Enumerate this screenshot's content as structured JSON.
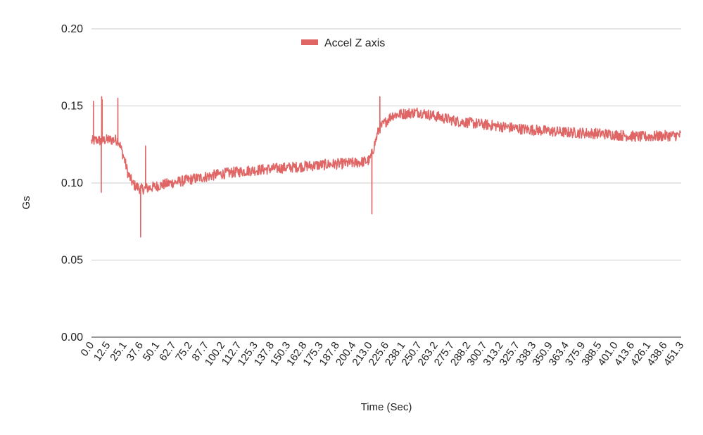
{
  "chart_data": {
    "type": "line",
    "title": "",
    "xlabel": "Time (Sec)",
    "ylabel": "Gs",
    "ylim": [
      0,
      0.2
    ],
    "xlim": [
      0,
      451.3
    ],
    "y_ticks": [
      "0.00",
      "0.05",
      "0.10",
      "0.15",
      "0.20"
    ],
    "y_tick_values": [
      0,
      0.05,
      0.1,
      0.15,
      0.2
    ],
    "x_ticks": [
      "0.0",
      "12.5",
      "25.1",
      "37.6",
      "50.1",
      "62.7",
      "75.2",
      "87.7",
      "100.2",
      "112.7",
      "125.3",
      "137.8",
      "150.3",
      "162.8",
      "175.3",
      "187.8",
      "200.4",
      "213.0",
      "225.6",
      "238.1",
      "250.7",
      "263.2",
      "275.7",
      "288.2",
      "300.7",
      "313.2",
      "325.7",
      "338.3",
      "350.9",
      "363.4",
      "375.9",
      "388.5",
      "401.0",
      "413.6",
      "426.1",
      "438.6",
      "451.3"
    ],
    "legend": {
      "position": "top",
      "entries": [
        "Accel Z axis"
      ]
    },
    "grid": true,
    "series": [
      {
        "name": "Accel Z axis",
        "color": "#e06666",
        "noise_amplitude": 0.0035,
        "trend_x": [
          0,
          5,
          8,
          10,
          20,
          21,
          22,
          25,
          28,
          32,
          36,
          38,
          45,
          55,
          80,
          100,
          120,
          150,
          180,
          200,
          210,
          213,
          215,
          220,
          230,
          240,
          250,
          265,
          280,
          300,
          330,
          360,
          390,
          420,
          451.3
        ],
        "trend_y": [
          0.127,
          0.128,
          0.127,
          0.128,
          0.128,
          0.127,
          0.124,
          0.116,
          0.106,
          0.099,
          0.097,
          0.096,
          0.097,
          0.099,
          0.103,
          0.106,
          0.108,
          0.11,
          0.112,
          0.113,
          0.114,
          0.115,
          0.12,
          0.135,
          0.144,
          0.145,
          0.146,
          0.143,
          0.14,
          0.138,
          0.135,
          0.133,
          0.132,
          0.13,
          0.131
        ],
        "spikes": [
          {
            "x": 1.5,
            "y": 0.153
          },
          {
            "x": 7.5,
            "y": 0.094
          },
          {
            "x": 7.8,
            "y": 0.156
          },
          {
            "x": 8.2,
            "y": 0.154
          },
          {
            "x": 20.2,
            "y": 0.155
          },
          {
            "x": 37.6,
            "y": 0.065
          },
          {
            "x": 41.4,
            "y": 0.124
          },
          {
            "x": 214.6,
            "y": 0.08
          },
          {
            "x": 220.7,
            "y": 0.156
          }
        ]
      }
    ]
  }
}
